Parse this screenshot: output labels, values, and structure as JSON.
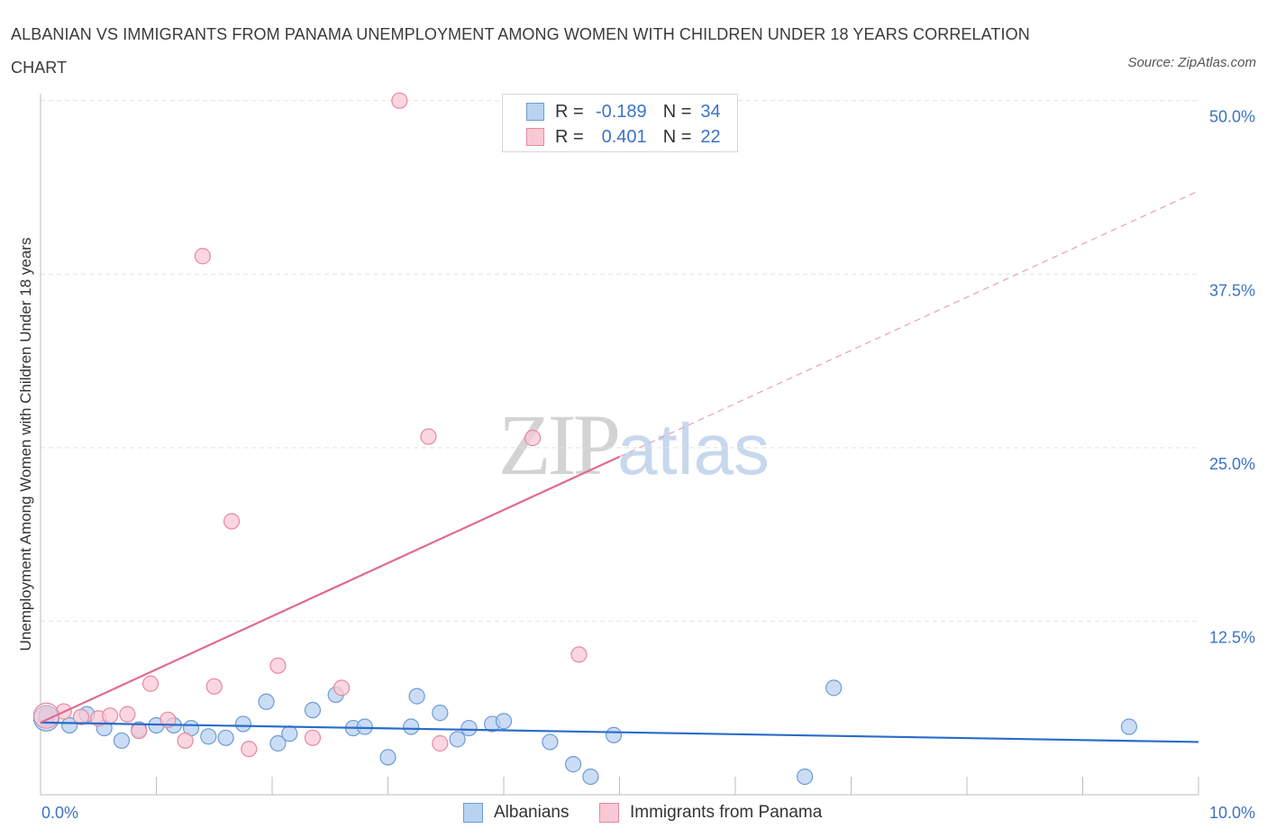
{
  "chart_data": {
    "type": "scatter",
    "title": "ALBANIAN VS IMMIGRANTS FROM PANAMA UNEMPLOYMENT AMONG WOMEN WITH CHILDREN UNDER 18 YEARS CORRELATION CHART",
    "source": "Source: ZipAtlas.com",
    "xlabel": "",
    "ylabel": "Unemployment Among Women with Children Under 18 years",
    "xlim": [
      0,
      10
    ],
    "ylim": [
      0,
      50.5
    ],
    "x_tick_labels": {
      "min": "0.0%",
      "max": "10.0%"
    },
    "y_ticks": [
      {
        "value": 12.5,
        "label": "12.5%"
      },
      {
        "value": 25.0,
        "label": "25.0%"
      },
      {
        "value": 37.5,
        "label": "37.5%"
      },
      {
        "value": 50.0,
        "label": "50.0%"
      }
    ],
    "watermark": {
      "zip": "ZIP",
      "atlas": "atlas"
    },
    "legend_stats": [
      {
        "r_label": "R =",
        "r": "-0.189",
        "n_label": "N =",
        "n": "34"
      },
      {
        "r_label": "R =",
        "r": "0.401",
        "n_label": "N =",
        "n": "22"
      }
    ],
    "series": [
      {
        "name": "Albanians",
        "color": "#6c9bd8",
        "fill": "#b9d2f0",
        "trend": {
          "x0": 0,
          "y0": 5.2,
          "x1": 10,
          "y1": 3.8,
          "solid_until": 10
        },
        "points": [
          [
            0.05,
            5.5
          ],
          [
            0.25,
            5.0
          ],
          [
            0.4,
            5.8
          ],
          [
            0.55,
            4.8
          ],
          [
            0.7,
            3.9
          ],
          [
            0.85,
            4.7
          ],
          [
            1.0,
            5.0
          ],
          [
            1.15,
            5.0
          ],
          [
            1.3,
            4.8
          ],
          [
            1.45,
            4.2
          ],
          [
            1.6,
            4.1
          ],
          [
            1.75,
            5.1
          ],
          [
            1.95,
            6.7
          ],
          [
            2.05,
            3.7
          ],
          [
            2.15,
            4.4
          ],
          [
            2.35,
            6.1
          ],
          [
            2.55,
            7.2
          ],
          [
            2.7,
            4.8
          ],
          [
            2.8,
            4.9
          ],
          [
            3.0,
            2.7
          ],
          [
            3.2,
            4.9
          ],
          [
            3.25,
            7.1
          ],
          [
            3.45,
            5.9
          ],
          [
            3.6,
            4.0
          ],
          [
            3.7,
            4.8
          ],
          [
            3.9,
            5.1
          ],
          [
            4.0,
            5.3
          ],
          [
            4.4,
            3.8
          ],
          [
            4.6,
            2.2
          ],
          [
            4.75,
            1.3
          ],
          [
            4.95,
            4.3
          ],
          [
            6.6,
            1.3
          ],
          [
            6.85,
            7.7
          ],
          [
            9.4,
            4.9
          ]
        ]
      },
      {
        "name": "Immigrants from Panama",
        "color": "#e8889f",
        "fill": "#f8c9d5",
        "trend": {
          "x0": 0,
          "y0": 5.2,
          "x1": 10,
          "y1": 43.5,
          "solid_until": 5.0
        },
        "points": [
          [
            0.05,
            5.7
          ],
          [
            0.2,
            6.0
          ],
          [
            0.35,
            5.6
          ],
          [
            0.5,
            5.5
          ],
          [
            0.6,
            5.7
          ],
          [
            0.75,
            5.8
          ],
          [
            0.85,
            4.6
          ],
          [
            0.95,
            8.0
          ],
          [
            1.1,
            5.4
          ],
          [
            1.25,
            3.9
          ],
          [
            1.4,
            38.8
          ],
          [
            1.5,
            7.8
          ],
          [
            1.65,
            19.7
          ],
          [
            1.8,
            3.3
          ],
          [
            2.05,
            9.3
          ],
          [
            2.35,
            4.1
          ],
          [
            2.6,
            7.7
          ],
          [
            3.1,
            50.0
          ],
          [
            3.35,
            25.8
          ],
          [
            3.45,
            3.7
          ],
          [
            4.25,
            25.7
          ],
          [
            4.65,
            10.1
          ]
        ]
      }
    ]
  }
}
